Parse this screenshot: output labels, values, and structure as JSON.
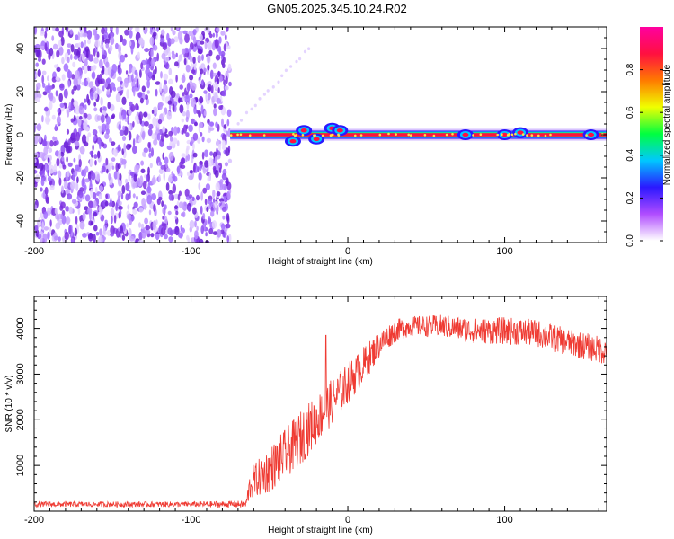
{
  "title": "GN05.2025.345.10.24.R02",
  "colors": {
    "signal": "#ef3b33",
    "scatter": "#7b2fe0",
    "axis": "#000000"
  },
  "chart_data": [
    {
      "type": "heatmap",
      "name": "spectrogram",
      "xlabel": "Height of straight line (km)",
      "ylabel": "Frequency (Hz)",
      "xlim": [
        -200,
        165
      ],
      "ylim": [
        -50,
        50
      ],
      "x_ticks": [
        "-200",
        "-100",
        "0",
        "100"
      ],
      "y_ticks": [
        "40",
        "20",
        "0",
        "-20",
        "-40"
      ],
      "noise_region_x": [
        -200,
        -75
      ],
      "band_region_x": [
        -75,
        165
      ],
      "band_center_freq": 0,
      "colorbar": {
        "label": "Normalized spectral amplitude",
        "range": [
          0,
          1
        ],
        "ticks": [
          "0.0",
          "0.2",
          "0.4",
          "0.6",
          "0.8"
        ],
        "colors": [
          "#ffffff",
          "#b04cff",
          "#2b18ff",
          "#00c8ff",
          "#00ff40",
          "#f0ff00",
          "#ff7a00",
          "#ff1040",
          "#ff00a0"
        ]
      }
    },
    {
      "type": "line",
      "name": "snr",
      "xlabel": "Height of straight line (km)",
      "ylabel": "SNR (10 * v/v)",
      "xlim": [
        -200,
        165
      ],
      "ylim": [
        0,
        4700
      ],
      "x_ticks": [
        "-200",
        "-100",
        "0",
        "100"
      ],
      "y_ticks": [
        "1000",
        "2000",
        "3000",
        "4000"
      ],
      "series": [
        {
          "name": "SNR",
          "x": [
            -200,
            -150,
            -100,
            -65,
            -62,
            -50,
            -40,
            -30,
            -20,
            -10,
            0,
            10,
            20,
            30,
            40,
            60,
            80,
            100,
            120,
            140,
            165
          ],
          "y": [
            150,
            150,
            150,
            150,
            600,
            900,
            1250,
            1600,
            2000,
            2400,
            2800,
            3200,
            3650,
            3950,
            4050,
            4050,
            3950,
            3950,
            3900,
            3700,
            3500
          ],
          "spread": [
            60,
            60,
            60,
            80,
            350,
            500,
            550,
            600,
            550,
            500,
            450,
            400,
            300,
            250,
            220,
            250,
            280,
            300,
            300,
            300,
            300
          ]
        }
      ],
      "annotations": [
        {
          "x": -14,
          "y": 3850,
          "text": ""
        }
      ]
    }
  ]
}
